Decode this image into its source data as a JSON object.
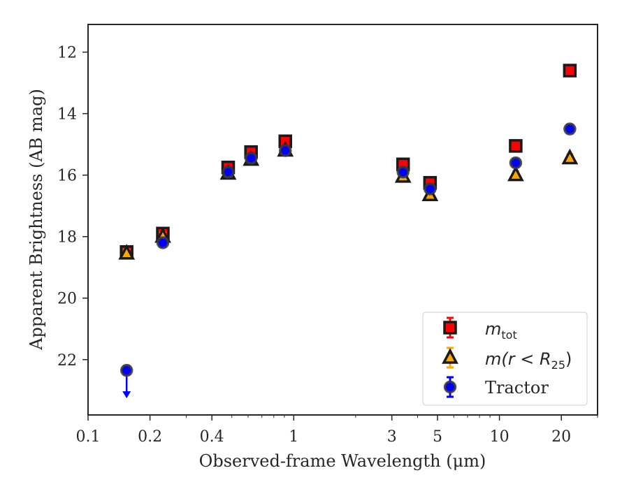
{
  "chart_data": {
    "type": "scatter",
    "xlabel": "Observed-frame Wavelength (μm)",
    "ylabel": "Apparent Brightness (AB mag)",
    "xscale": "log",
    "xlim": [
      0.1,
      30
    ],
    "ylim": [
      23.8,
      11.1
    ],
    "y_inverted": true,
    "x_ticks": [
      0.1,
      0.2,
      0.4,
      1,
      3,
      5,
      10,
      20
    ],
    "x_tick_labels": [
      "0.1",
      "0.2",
      "0.4",
      "1",
      "3",
      "5",
      "10",
      "20"
    ],
    "y_ticks": [
      12,
      14,
      16,
      18,
      20,
      22
    ],
    "y_tick_labels": [
      "12",
      "14",
      "16",
      "18",
      "20",
      "22"
    ],
    "grid": false,
    "legend_position": "bottom-right",
    "series": [
      {
        "name": "m_tot",
        "legend_main": "m",
        "legend_sub": "tot",
        "marker": "square",
        "color": "#ff0000",
        "errcolor": "#ff0000",
        "x": [
          0.154,
          0.231,
          0.48,
          0.62,
          0.91,
          3.4,
          4.6,
          12.0,
          22.0
        ],
        "y": [
          18.5,
          17.9,
          15.75,
          15.25,
          14.9,
          15.65,
          16.25,
          15.05,
          12.6
        ]
      },
      {
        "name": "m(r < R_25)",
        "legend_main": "m(r < R",
        "legend_sub": "25",
        "legend_end": ")",
        "marker": "triangle",
        "color": "#ffa500",
        "errcolor": "#ffa500",
        "x": [
          0.154,
          0.231,
          0.48,
          0.62,
          0.91,
          3.4,
          4.6,
          12.0,
          22.0
        ],
        "y": [
          18.55,
          18.0,
          15.95,
          15.5,
          15.2,
          16.05,
          16.65,
          16.0,
          15.45
        ]
      },
      {
        "name": "Tractor",
        "marker": "circle",
        "color": "#0000ff",
        "errcolor": "#0000ff",
        "x": [
          0.154,
          0.231,
          0.48,
          0.62,
          0.91,
          3.4,
          4.6,
          12.0,
          22.0
        ],
        "y": [
          22.35,
          18.2,
          15.9,
          15.45,
          15.2,
          15.9,
          16.45,
          15.6,
          14.5
        ],
        "upper_limit": [
          true,
          false,
          false,
          false,
          false,
          false,
          false,
          false,
          false
        ]
      }
    ]
  }
}
